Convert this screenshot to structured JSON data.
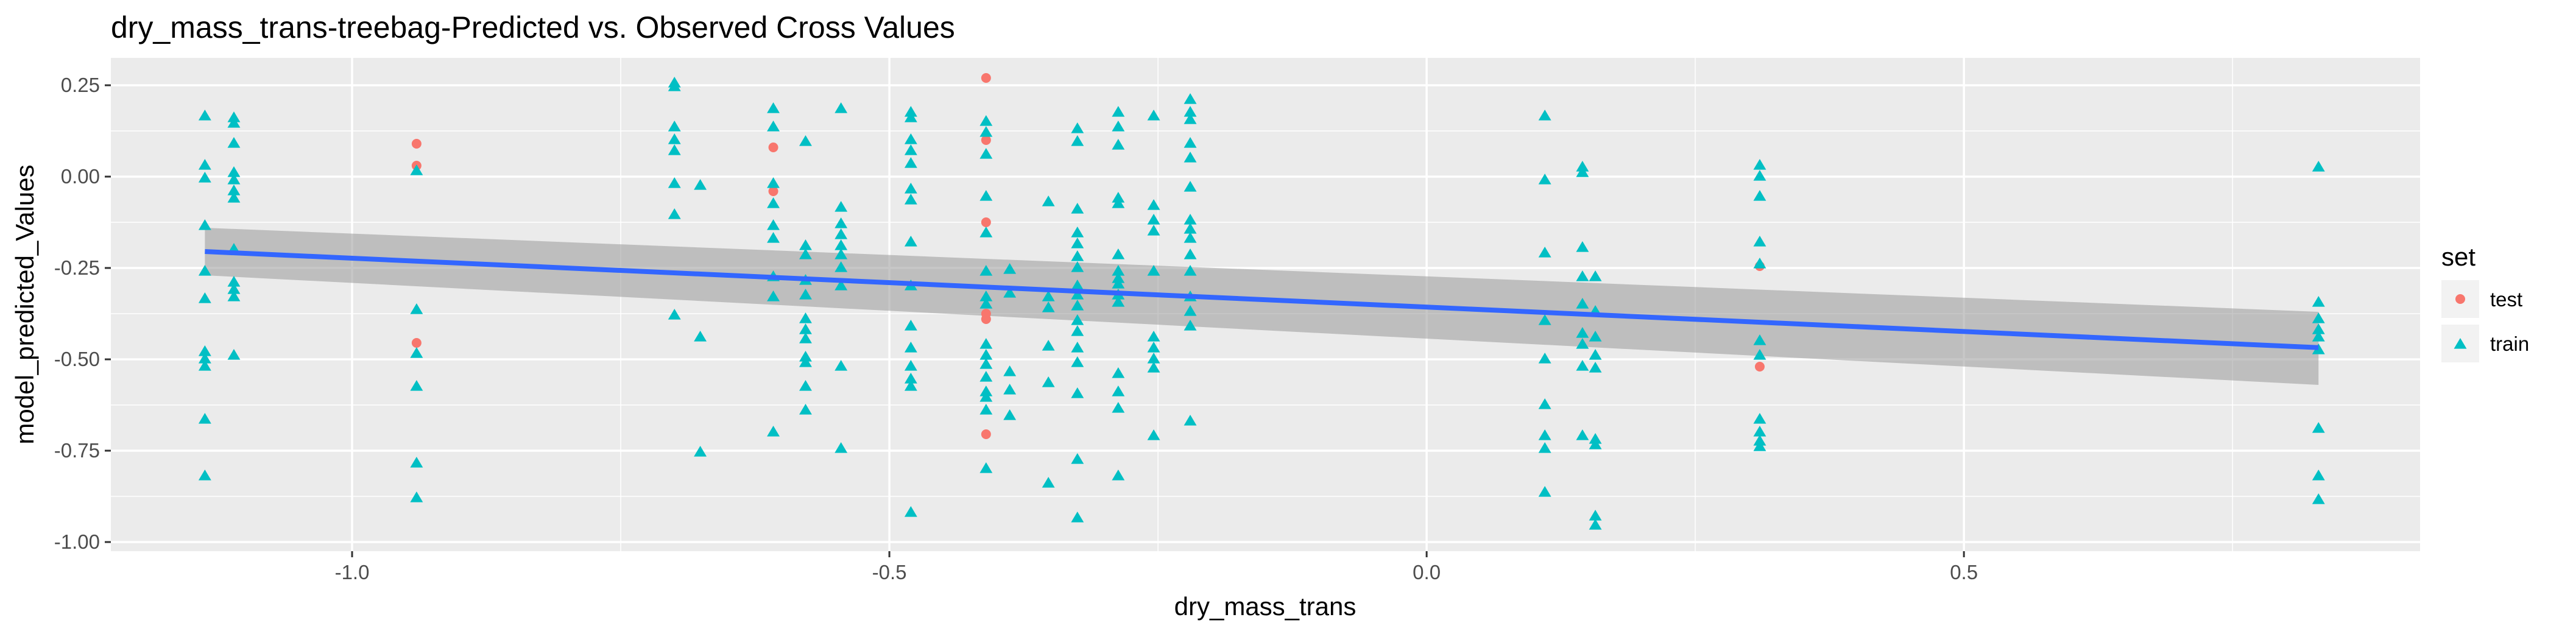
{
  "chart_data": {
    "type": "scatter",
    "title": "dry_mass_trans-treebag-Predicted vs. Observed Cross Values",
    "xlabel": "dry_mass_trans",
    "ylabel": "model_predicted_Values",
    "xlim": [
      -1.2245,
      0.9245
    ],
    "ylim": [
      -1.025,
      0.325
    ],
    "x_ticks": [
      {
        "value": -1.0,
        "label": "-1.0"
      },
      {
        "value": -0.5,
        "label": "-0.5"
      },
      {
        "value": 0.0,
        "label": "0.0"
      },
      {
        "value": 0.5,
        "label": "0.5"
      }
    ],
    "y_ticks": [
      {
        "value": 0.25,
        "label": "0.25"
      },
      {
        "value": 0.0,
        "label": "0.00"
      },
      {
        "value": -0.25,
        "label": "-0.25"
      },
      {
        "value": -0.5,
        "label": "-0.50"
      },
      {
        "value": -0.75,
        "label": "-0.75"
      },
      {
        "value": -1.0,
        "label": "-1.00"
      }
    ],
    "grid": true,
    "legend": {
      "title": "set",
      "placement": "right",
      "entries": [
        {
          "label": "test",
          "shape": "circle",
          "color": "#F8766D"
        },
        {
          "label": "train",
          "shape": "triangle",
          "color": "#00BFC4"
        }
      ]
    },
    "colors": {
      "test": "#F8766D",
      "train": "#00BFC4",
      "trend_line": "#3366FF",
      "ribbon": "#999999",
      "panel": "#EBEBEB"
    },
    "trend": {
      "x": [
        -1.137,
        0.83
      ],
      "y": [
        -0.205,
        -0.468
      ],
      "ribbon_upper": [
        -0.14,
        -0.37
      ],
      "ribbon_lower": [
        -0.27,
        -0.57
      ]
    },
    "series": [
      {
        "name": "test",
        "points": [
          [
            -0.94,
            0.09
          ],
          [
            -0.94,
            0.03
          ],
          [
            -0.94,
            -0.455
          ],
          [
            -0.608,
            0.08
          ],
          [
            -0.608,
            -0.04
          ],
          [
            -0.41,
            0.27
          ],
          [
            -0.41,
            0.1
          ],
          [
            -0.41,
            -0.125
          ],
          [
            -0.41,
            -0.375
          ],
          [
            -0.41,
            -0.39
          ],
          [
            -0.41,
            -0.705
          ],
          [
            0.31,
            -0.245
          ],
          [
            0.31,
            -0.52
          ]
        ]
      },
      {
        "name": "train",
        "points": [
          [
            -1.137,
            0.165
          ],
          [
            -1.137,
            0.03
          ],
          [
            -1.137,
            -0.005
          ],
          [
            -1.137,
            -0.135
          ],
          [
            -1.137,
            -0.26
          ],
          [
            -1.137,
            -0.335
          ],
          [
            -1.137,
            -0.48
          ],
          [
            -1.137,
            -0.5
          ],
          [
            -1.137,
            -0.52
          ],
          [
            -1.137,
            -0.665
          ],
          [
            -1.137,
            -0.82
          ],
          [
            -1.11,
            0.16
          ],
          [
            -1.11,
            0.145
          ],
          [
            -1.11,
            0.09
          ],
          [
            -1.11,
            0.01
          ],
          [
            -1.11,
            -0.01
          ],
          [
            -1.11,
            -0.04
          ],
          [
            -1.11,
            -0.06
          ],
          [
            -1.11,
            -0.2
          ],
          [
            -1.11,
            -0.29
          ],
          [
            -1.11,
            -0.31
          ],
          [
            -1.11,
            -0.33
          ],
          [
            -1.11,
            -0.49
          ],
          [
            -0.94,
            0.015
          ],
          [
            -0.94,
            -0.365
          ],
          [
            -0.94,
            -0.485
          ],
          [
            -0.94,
            -0.575
          ],
          [
            -0.94,
            -0.785
          ],
          [
            -0.94,
            -0.88
          ],
          [
            -0.7,
            0.255
          ],
          [
            -0.7,
            0.245
          ],
          [
            -0.7,
            0.135
          ],
          [
            -0.7,
            0.1
          ],
          [
            -0.7,
            0.07
          ],
          [
            -0.7,
            -0.02
          ],
          [
            -0.7,
            -0.105
          ],
          [
            -0.7,
            -0.38
          ],
          [
            -0.676,
            -0.025
          ],
          [
            -0.676,
            -0.44
          ],
          [
            -0.676,
            -0.755
          ],
          [
            -0.608,
            0.185
          ],
          [
            -0.608,
            0.135
          ],
          [
            -0.608,
            -0.02
          ],
          [
            -0.608,
            -0.075
          ],
          [
            -0.608,
            -0.135
          ],
          [
            -0.608,
            -0.17
          ],
          [
            -0.608,
            -0.275
          ],
          [
            -0.608,
            -0.33
          ],
          [
            -0.608,
            -0.7
          ],
          [
            -0.578,
            0.095
          ],
          [
            -0.578,
            -0.19
          ],
          [
            -0.578,
            -0.215
          ],
          [
            -0.578,
            -0.285
          ],
          [
            -0.578,
            -0.325
          ],
          [
            -0.578,
            -0.39
          ],
          [
            -0.578,
            -0.42
          ],
          [
            -0.578,
            -0.445
          ],
          [
            -0.578,
            -0.495
          ],
          [
            -0.578,
            -0.51
          ],
          [
            -0.578,
            -0.575
          ],
          [
            -0.578,
            -0.64
          ],
          [
            -0.545,
            0.185
          ],
          [
            -0.545,
            -0.085
          ],
          [
            -0.545,
            -0.13
          ],
          [
            -0.545,
            -0.16
          ],
          [
            -0.545,
            -0.19
          ],
          [
            -0.545,
            -0.215
          ],
          [
            -0.545,
            -0.25
          ],
          [
            -0.545,
            -0.3
          ],
          [
            -0.545,
            -0.52
          ],
          [
            -0.545,
            -0.745
          ],
          [
            -0.48,
            0.175
          ],
          [
            -0.48,
            0.16
          ],
          [
            -0.48,
            0.1
          ],
          [
            -0.48,
            0.07
          ],
          [
            -0.48,
            0.035
          ],
          [
            -0.48,
            -0.035
          ],
          [
            -0.48,
            -0.065
          ],
          [
            -0.48,
            -0.18
          ],
          [
            -0.48,
            -0.3
          ],
          [
            -0.48,
            -0.41
          ],
          [
            -0.48,
            -0.47
          ],
          [
            -0.48,
            -0.52
          ],
          [
            -0.48,
            -0.555
          ],
          [
            -0.48,
            -0.575
          ],
          [
            -0.48,
            -0.92
          ],
          [
            -0.41,
            0.15
          ],
          [
            -0.41,
            0.12
          ],
          [
            -0.41,
            0.06
          ],
          [
            -0.41,
            -0.055
          ],
          [
            -0.41,
            -0.155
          ],
          [
            -0.41,
            -0.26
          ],
          [
            -0.41,
            -0.33
          ],
          [
            -0.41,
            -0.35
          ],
          [
            -0.41,
            -0.46
          ],
          [
            -0.41,
            -0.49
          ],
          [
            -0.41,
            -0.515
          ],
          [
            -0.41,
            -0.55
          ],
          [
            -0.41,
            -0.59
          ],
          [
            -0.41,
            -0.605
          ],
          [
            -0.41,
            -0.64
          ],
          [
            -0.41,
            -0.8
          ],
          [
            -0.388,
            -0.255
          ],
          [
            -0.388,
            -0.32
          ],
          [
            -0.388,
            -0.535
          ],
          [
            -0.388,
            -0.585
          ],
          [
            -0.388,
            -0.655
          ],
          [
            -0.352,
            -0.07
          ],
          [
            -0.352,
            -0.33
          ],
          [
            -0.352,
            -0.36
          ],
          [
            -0.352,
            -0.465
          ],
          [
            -0.352,
            -0.565
          ],
          [
            -0.352,
            -0.84
          ],
          [
            -0.325,
            0.13
          ],
          [
            -0.325,
            0.095
          ],
          [
            -0.325,
            -0.09
          ],
          [
            -0.325,
            -0.155
          ],
          [
            -0.325,
            -0.185
          ],
          [
            -0.325,
            -0.22
          ],
          [
            -0.325,
            -0.25
          ],
          [
            -0.325,
            -0.3
          ],
          [
            -0.325,
            -0.325
          ],
          [
            -0.325,
            -0.355
          ],
          [
            -0.325,
            -0.395
          ],
          [
            -0.325,
            -0.425
          ],
          [
            -0.325,
            -0.47
          ],
          [
            -0.325,
            -0.51
          ],
          [
            -0.325,
            -0.595
          ],
          [
            -0.325,
            -0.775
          ],
          [
            -0.325,
            -0.935
          ],
          [
            -0.287,
            0.175
          ],
          [
            -0.287,
            0.135
          ],
          [
            -0.287,
            0.085
          ],
          [
            -0.287,
            -0.06
          ],
          [
            -0.287,
            -0.075
          ],
          [
            -0.287,
            -0.215
          ],
          [
            -0.287,
            -0.26
          ],
          [
            -0.287,
            -0.28
          ],
          [
            -0.287,
            -0.295
          ],
          [
            -0.287,
            -0.325
          ],
          [
            -0.287,
            -0.345
          ],
          [
            -0.287,
            -0.54
          ],
          [
            -0.287,
            -0.59
          ],
          [
            -0.287,
            -0.635
          ],
          [
            -0.287,
            -0.82
          ],
          [
            -0.254,
            0.165
          ],
          [
            -0.254,
            -0.08
          ],
          [
            -0.254,
            -0.12
          ],
          [
            -0.254,
            -0.15
          ],
          [
            -0.254,
            -0.26
          ],
          [
            -0.254,
            -0.44
          ],
          [
            -0.254,
            -0.47
          ],
          [
            -0.254,
            -0.5
          ],
          [
            -0.254,
            -0.525
          ],
          [
            -0.254,
            -0.71
          ],
          [
            -0.22,
            0.21
          ],
          [
            -0.22,
            0.175
          ],
          [
            -0.22,
            0.155
          ],
          [
            -0.22,
            0.09
          ],
          [
            -0.22,
            0.05
          ],
          [
            -0.22,
            -0.03
          ],
          [
            -0.22,
            -0.12
          ],
          [
            -0.22,
            -0.145
          ],
          [
            -0.22,
            -0.17
          ],
          [
            -0.22,
            -0.215
          ],
          [
            -0.22,
            -0.26
          ],
          [
            -0.22,
            -0.33
          ],
          [
            -0.22,
            -0.37
          ],
          [
            -0.22,
            -0.41
          ],
          [
            -0.22,
            -0.67
          ],
          [
            0.11,
            0.165
          ],
          [
            0.11,
            -0.01
          ],
          [
            0.11,
            -0.21
          ],
          [
            0.11,
            -0.395
          ],
          [
            0.11,
            -0.5
          ],
          [
            0.11,
            -0.625
          ],
          [
            0.11,
            -0.71
          ],
          [
            0.11,
            -0.745
          ],
          [
            0.11,
            -0.865
          ],
          [
            0.145,
            0.025
          ],
          [
            0.145,
            0.01
          ],
          [
            0.145,
            -0.195
          ],
          [
            0.145,
            -0.275
          ],
          [
            0.145,
            -0.35
          ],
          [
            0.145,
            -0.43
          ],
          [
            0.145,
            -0.46
          ],
          [
            0.145,
            -0.52
          ],
          [
            0.145,
            -0.71
          ],
          [
            0.157,
            -0.275
          ],
          [
            0.157,
            -0.37
          ],
          [
            0.157,
            -0.44
          ],
          [
            0.157,
            -0.49
          ],
          [
            0.157,
            -0.525
          ],
          [
            0.157,
            -0.72
          ],
          [
            0.157,
            -0.735
          ],
          [
            0.157,
            -0.93
          ],
          [
            0.157,
            -0.955
          ],
          [
            0.31,
            0.03
          ],
          [
            0.31,
            0.0
          ],
          [
            0.31,
            -0.055
          ],
          [
            0.31,
            -0.18
          ],
          [
            0.31,
            -0.24
          ],
          [
            0.31,
            -0.45
          ],
          [
            0.31,
            -0.49
          ],
          [
            0.31,
            -0.665
          ],
          [
            0.31,
            -0.7
          ],
          [
            0.31,
            -0.725
          ],
          [
            0.31,
            -0.74
          ],
          [
            0.83,
            0.025
          ],
          [
            0.83,
            -0.345
          ],
          [
            0.83,
            -0.39
          ],
          [
            0.83,
            -0.42
          ],
          [
            0.83,
            -0.44
          ],
          [
            0.83,
            -0.475
          ],
          [
            0.83,
            -0.69
          ],
          [
            0.83,
            -0.82
          ],
          [
            0.83,
            -0.885
          ]
        ]
      }
    ]
  }
}
